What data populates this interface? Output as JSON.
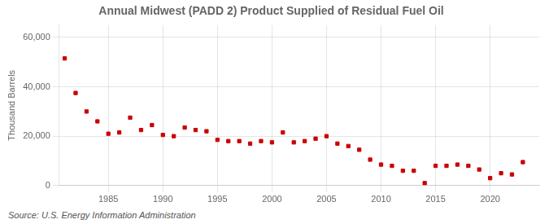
{
  "chart_data": {
    "type": "scatter",
    "title": "Annual Midwest (PADD 2) Product Supplied of Residual Fuel Oil",
    "ylabel": "Thousand Barrels",
    "annotations": [
      "Source: U.S. Energy Information Administration"
    ],
    "x": [
      1981,
      1982,
      1983,
      1984,
      1985,
      1986,
      1987,
      1988,
      1989,
      1990,
      1991,
      1992,
      1993,
      1994,
      1995,
      1996,
      1997,
      1998,
      1999,
      2000,
      2001,
      2002,
      2003,
      2004,
      2005,
      2006,
      2007,
      2008,
      2009,
      2010,
      2011,
      2012,
      2013,
      2014,
      2015,
      2016,
      2017,
      2018,
      2019,
      2020,
      2021,
      2022,
      2023
    ],
    "values": [
      51500,
      37500,
      30000,
      26000,
      21000,
      21500,
      27500,
      22500,
      24500,
      20500,
      20000,
      23500,
      22500,
      22000,
      18500,
      18000,
      18000,
      17000,
      18000,
      17500,
      21500,
      17500,
      18000,
      19000,
      20000,
      17000,
      16000,
      14500,
      10500,
      8500,
      8000,
      6000,
      6000,
      1000,
      8000,
      8000,
      8500,
      8000,
      6500,
      3000,
      5000,
      4500,
      9500
    ],
    "color": "#cc0000",
    "marker": "square",
    "xlim": [
      1980.5,
      2024.5
    ],
    "xticks": [
      1985,
      1990,
      1995,
      2000,
      2005,
      2010,
      2015,
      2020
    ],
    "ylim": [
      0,
      65000
    ],
    "yticks": [
      0,
      {
        "value": 20000,
        "label": "20,000"
      },
      {
        "value": 40000,
        "label": "40,000"
      },
      {
        "value": 60000,
        "label": "60,000"
      }
    ],
    "grid": true
  }
}
